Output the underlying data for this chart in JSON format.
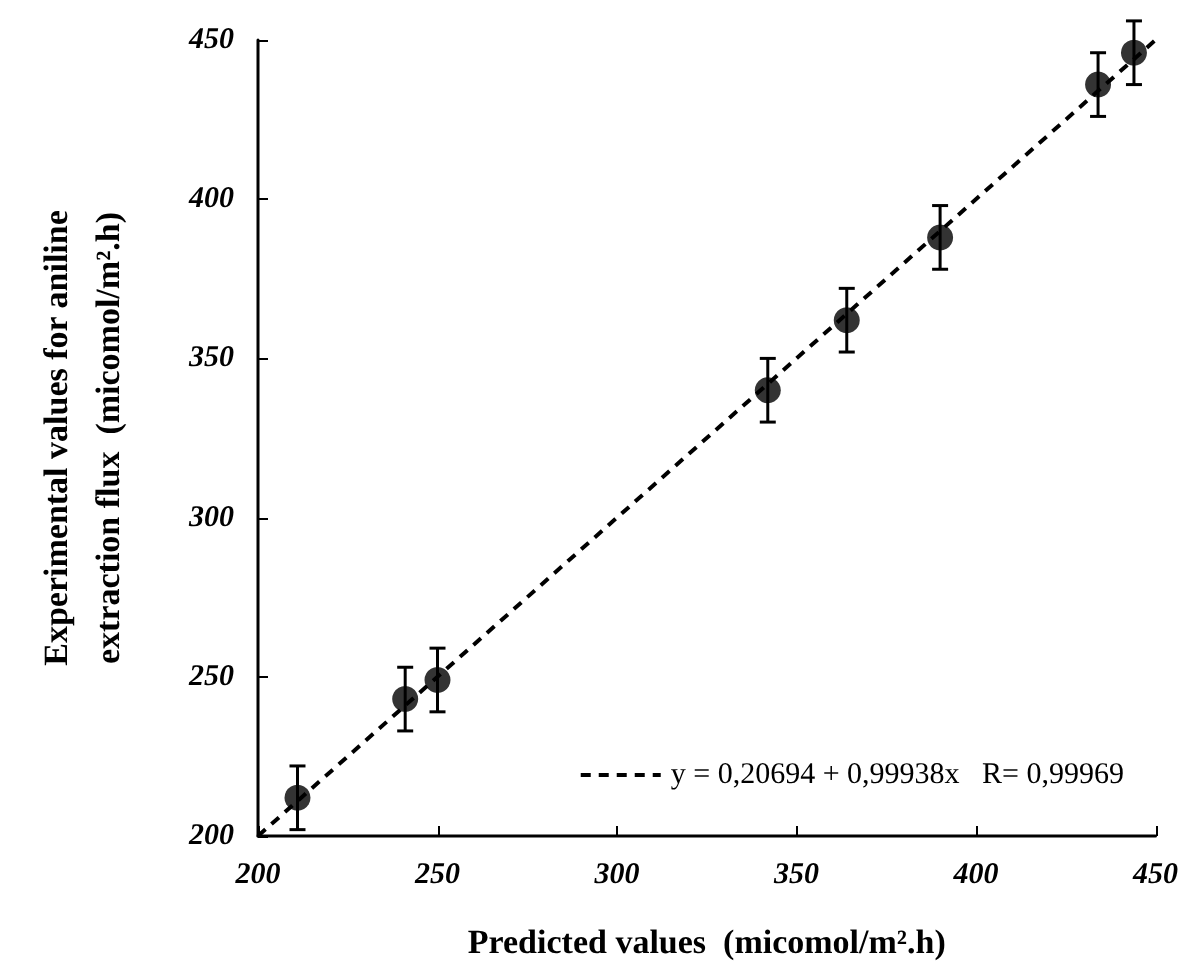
{
  "chart_data": {
    "type": "scatter",
    "xlabel": "Predicted values  (micomol/m².h)",
    "ylabel": "Experimental values for aniline\nextraction flux  (micomol/m².h)",
    "series": [
      {
        "color": "#000000",
        "marker": "circle",
        "x": [
          211,
          241,
          250,
          342,
          364,
          390,
          434,
          444
        ],
        "values": [
          212,
          243,
          249,
          340,
          362,
          388,
          436,
          446
        ],
        "errors": [
          10,
          10,
          10,
          10,
          10,
          10,
          10,
          10
        ]
      },
      {
        "type": "line",
        "name": "y = 0,20694 + 0,99938x   R= 0,99969",
        "color": "#000000",
        "line_style": "dashed",
        "marker": "none",
        "x": [
          200,
          450
        ],
        "values": [
          200,
          450
        ]
      }
    ],
    "xlim": [
      200,
      450
    ],
    "xticks": [
      200,
      250,
      300,
      350,
      400,
      450
    ],
    "ylim": [
      200,
      450
    ],
    "yticks": [
      200,
      250,
      300,
      350,
      400,
      450
    ],
    "grid": false,
    "legend": "bottom right"
  }
}
